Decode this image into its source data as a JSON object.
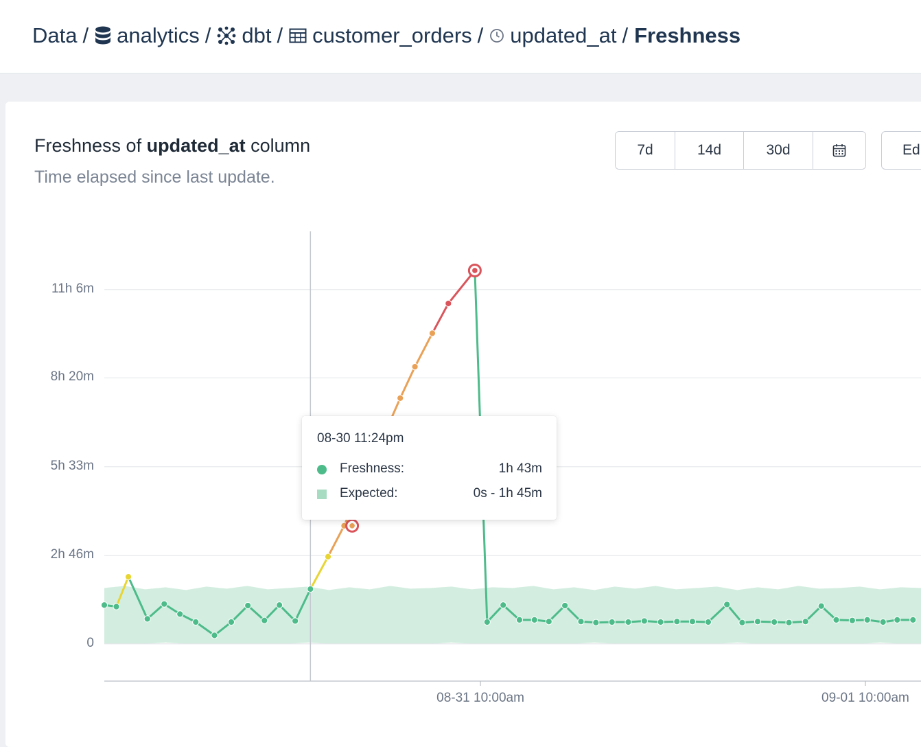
{
  "breadcrumb": {
    "root": "Data",
    "database": "analytics",
    "schema": "dbt",
    "table": "customer_orders",
    "column": "updated_at",
    "page": "Freshness",
    "separator": "/"
  },
  "card": {
    "title_prefix": "Freshness of",
    "title_column": "updated_at",
    "title_suffix": "column",
    "subtitle": "Time elapsed since last update."
  },
  "range_buttons": [
    "7d",
    "14d",
    "30d"
  ],
  "calendar_icon": "calendar-icon",
  "edit_button_label": "Ed",
  "colors": {
    "ok": "#4dbb8a",
    "expected_band": "#d3eee0",
    "warning": "#e8d534",
    "late": "#e9a157",
    "alert": "#d9555b",
    "grid": "#e4e6ea",
    "hover_line": "#c4c8cf"
  },
  "tooltip": {
    "time": "08-30 11:24pm",
    "rows": [
      {
        "label": "Freshness:",
        "value": "1h 43m",
        "color": "#4dbb8a",
        "kind": "dot"
      },
      {
        "label": "Expected:",
        "value": "0s - 1h 45m",
        "color": "#a8dcc2",
        "kind": "square"
      }
    ]
  },
  "chart_data": {
    "type": "line",
    "y_unit": "minutes",
    "y_ticks": [
      {
        "label": "0",
        "value": 0
      },
      {
        "label": "2h 46m",
        "value": 166
      },
      {
        "label": "5h 33m",
        "value": 333
      },
      {
        "label": "8h 20m",
        "value": 500
      },
      {
        "label": "11h 6m",
        "value": 666
      }
    ],
    "x_ticks": [
      {
        "label": "08-31 10:00am",
        "value": "2023-08-31 10:00"
      },
      {
        "label": "09-01 10:00am",
        "value": "2023-09-01 10:00"
      }
    ],
    "x_range": [
      "2023-08-30 10:33",
      "2023-09-01 13:28"
    ],
    "y_range": [
      -70,
      720
    ],
    "hover_x": "2023-08-30 23:24",
    "expected_band": {
      "min": 0,
      "max": 105
    },
    "series": [
      {
        "kind": "freshness",
        "points": [
          [
            "2023-08-30 10:33",
            73,
            "ok"
          ],
          [
            "2023-08-30 11:18",
            70,
            "ok"
          ],
          [
            "2023-08-30 12:03",
            126,
            "warning"
          ],
          [
            "2023-08-30 13:14",
            47,
            "ok"
          ],
          [
            "2023-08-30 14:17",
            75,
            "ok"
          ],
          [
            "2023-08-30 15:16",
            56,
            "ok"
          ],
          [
            "2023-08-30 16:15",
            41,
            "ok"
          ],
          [
            "2023-08-30 17:25",
            16,
            "ok"
          ],
          [
            "2023-08-30 18:28",
            41,
            "ok"
          ],
          [
            "2023-08-30 19:30",
            72,
            "ok"
          ],
          [
            "2023-08-30 20:32",
            44,
            "ok"
          ],
          [
            "2023-08-30 21:28",
            73,
            "ok"
          ],
          [
            "2023-08-30 22:27",
            43,
            "ok"
          ],
          [
            "2023-08-30 23:24",
            103,
            "ok"
          ],
          [
            "2023-08-31 00:30",
            164,
            "warning"
          ],
          [
            "2023-08-31 01:30",
            222,
            "late"
          ],
          [
            "2023-08-31 05:00",
            462,
            "late"
          ],
          [
            "2023-08-31 05:55",
            521,
            "late"
          ],
          [
            "2023-08-31 07:00",
            584,
            "late"
          ],
          [
            "2023-08-31 08:00",
            640,
            "alert"
          ],
          [
            "2023-08-31 09:39",
            702,
            "alert"
          ],
          [
            "2023-08-31 10:25",
            41,
            "ok"
          ],
          [
            "2023-08-31 11:25",
            73,
            "ok"
          ],
          [
            "2023-08-31 12:26",
            45,
            "ok"
          ],
          [
            "2023-08-31 13:22",
            45,
            "ok"
          ],
          [
            "2023-08-31 14:16",
            42,
            "ok"
          ],
          [
            "2023-08-31 15:16",
            72,
            "ok"
          ],
          [
            "2023-08-31 16:16",
            42,
            "ok"
          ],
          [
            "2023-08-31 17:12",
            40,
            "ok"
          ],
          [
            "2023-08-31 18:12",
            41,
            "ok"
          ],
          [
            "2023-08-31 19:13",
            41,
            "ok"
          ],
          [
            "2023-08-31 20:13",
            43,
            "ok"
          ],
          [
            "2023-08-31 21:14",
            41,
            "ok"
          ],
          [
            "2023-08-31 22:15",
            42,
            "ok"
          ],
          [
            "2023-08-31 23:13",
            42,
            "ok"
          ],
          [
            "2023-09-01 00:12",
            41,
            "ok"
          ],
          [
            "2023-09-01 01:22",
            74,
            "ok"
          ],
          [
            "2023-09-01 02:19",
            40,
            "ok"
          ],
          [
            "2023-09-01 03:17",
            42,
            "ok"
          ],
          [
            "2023-09-01 04:19",
            41,
            "ok"
          ],
          [
            "2023-09-01 05:14",
            40,
            "ok"
          ],
          [
            "2023-09-01 06:16",
            42,
            "ok"
          ],
          [
            "2023-09-01 07:15",
            71,
            "ok"
          ],
          [
            "2023-09-01 08:11",
            45,
            "ok"
          ],
          [
            "2023-09-01 09:11",
            44,
            "ok"
          ],
          [
            "2023-09-01 10:07",
            45,
            "ok"
          ],
          [
            "2023-09-01 11:06",
            41,
            "ok"
          ],
          [
            "2023-09-01 11:59",
            45,
            "ok"
          ],
          [
            "2023-09-01 12:58",
            45,
            "ok"
          ]
        ]
      }
    ],
    "markers": [
      {
        "x": "2023-08-31 02:00",
        "y": 222,
        "state": "late"
      },
      {
        "x": "2023-08-31 09:39",
        "y": 702,
        "state": "alert"
      }
    ]
  }
}
